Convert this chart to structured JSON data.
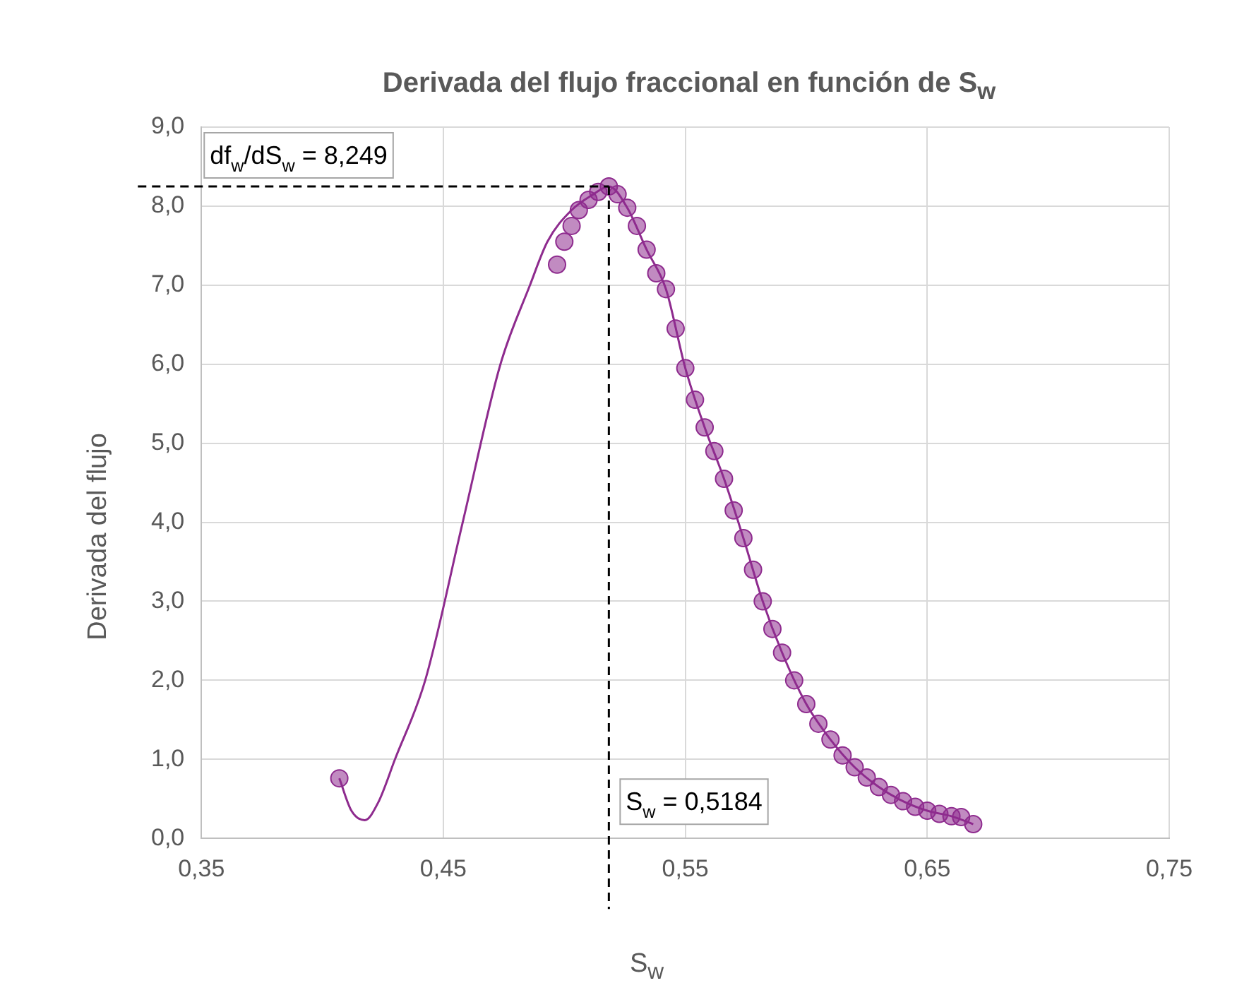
{
  "chart_data": {
    "type": "scatter",
    "title": "Derivada del flujo fraccional en función de S$_{w}$",
    "xlabel": "S$_{w}$",
    "ylabel": "Derivada del flujo",
    "xlim": [
      0.35,
      0.75
    ],
    "xticks": [
      {
        "value": 0.35,
        "label": "0,35"
      },
      {
        "value": 0.45,
        "label": "0,45"
      },
      {
        "value": 0.55,
        "label": "0,55"
      },
      {
        "value": 0.65,
        "label": "0,65"
      },
      {
        "value": 0.75,
        "label": "0,75"
      }
    ],
    "ylim": [
      0,
      9
    ],
    "yticks": [
      {
        "value": 0,
        "label": "0,0"
      },
      {
        "value": 1,
        "label": "1,0"
      },
      {
        "value": 2,
        "label": "2,0"
      },
      {
        "value": 3,
        "label": "3,0"
      },
      {
        "value": 4,
        "label": "4,0"
      },
      {
        "value": 5,
        "label": "5,0"
      },
      {
        "value": 6,
        "label": "6,0"
      },
      {
        "value": 7,
        "label": "7,0"
      },
      {
        "value": 8,
        "label": "8,0"
      },
      {
        "value": 9,
        "label": "9,0"
      }
    ],
    "grid": true,
    "legend": false,
    "series": [
      {
        "type": "line",
        "marker": "none",
        "line_style": "solid",
        "color": "#8e2b8e",
        "x": [
          0.407,
          0.412,
          0.4175,
          0.423,
          0.43,
          0.4425,
          0.458,
          0.4736,
          0.4858,
          0.493,
          0.503,
          0.512,
          0.5184,
          0.526,
          0.534,
          0.542,
          0.55,
          0.558,
          0.566,
          0.574,
          0.582,
          0.59,
          0.6,
          0.61,
          0.62,
          0.63,
          0.64,
          0.65,
          0.66,
          0.669
        ],
        "values": [
          0.76,
          0.35,
          0.23,
          0.45,
          1.0,
          2.0,
          4.0,
          6.0,
          7.0,
          7.55,
          7.95,
          8.15,
          8.25,
          7.98,
          7.45,
          6.95,
          5.95,
          5.2,
          4.55,
          3.8,
          3.0,
          2.35,
          1.7,
          1.25,
          0.9,
          0.65,
          0.47,
          0.35,
          0.28,
          0.18
        ]
      },
      {
        "marker": "circle",
        "color": "#8e2b8e",
        "x": [
          0.407,
          0.497,
          0.5,
          0.503,
          0.506,
          0.51,
          0.514,
          0.5184,
          0.522,
          0.526,
          0.53,
          0.534,
          0.538,
          0.542,
          0.546,
          0.55,
          0.554,
          0.558,
          0.562,
          0.566,
          0.57,
          0.574,
          0.578,
          0.582,
          0.586,
          0.59,
          0.595,
          0.6,
          0.605,
          0.61,
          0.615,
          0.62,
          0.625,
          0.63,
          0.635,
          0.64,
          0.645,
          0.65,
          0.655,
          0.66,
          0.664,
          0.669
        ],
        "values": [
          0.76,
          7.26,
          7.55,
          7.75,
          7.95,
          8.08,
          8.18,
          8.25,
          8.15,
          7.98,
          7.75,
          7.45,
          7.15,
          6.95,
          6.45,
          5.95,
          5.55,
          5.2,
          4.9,
          4.55,
          4.15,
          3.8,
          3.4,
          3.0,
          2.65,
          2.35,
          2.0,
          1.7,
          1.45,
          1.25,
          1.05,
          0.9,
          0.77,
          0.65,
          0.55,
          0.47,
          0.4,
          0.35,
          0.31,
          0.28,
          0.27,
          0.18
        ]
      }
    ],
    "ref_lines": [
      {
        "axis": "y",
        "value": 8.249,
        "label": "df$_{w}$/dS$_{w}$ = 8,249",
        "color": "#000000",
        "line_style": "dashed"
      },
      {
        "axis": "x",
        "value": 0.5184,
        "label": "S$_{w}$ = 0,5184",
        "color": "#000000",
        "line_style": "dashed"
      }
    ]
  }
}
